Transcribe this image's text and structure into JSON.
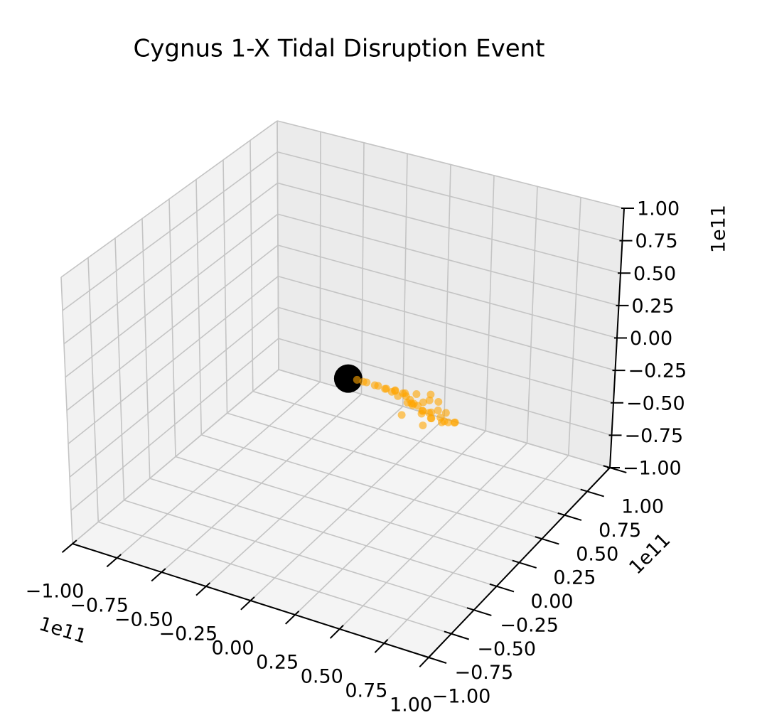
{
  "chart_data": {
    "type": "scatter3d",
    "title": "Cygnus 1-X Tidal Disruption Event",
    "x_offset": "1e11",
    "y_offset": "1e11",
    "z_offset": "1e11",
    "xlim": [
      -1,
      1
    ],
    "ylim": [
      -1,
      1
    ],
    "zlim": [
      -1,
      1
    ],
    "xticks": [
      {
        "value": -1,
        "label": "−1.00"
      },
      {
        "value": -0.75,
        "label": "−0.75"
      },
      {
        "value": -0.5,
        "label": "−0.50"
      },
      {
        "value": -0.25,
        "label": "−0.25"
      },
      {
        "value": 0,
        "label": "0.00"
      },
      0.25,
      {
        "value": 0.5,
        "label": "0.50"
      },
      0.75,
      {
        "value": 1,
        "label": "1.00"
      }
    ],
    "yticks": [
      {
        "value": -1,
        "label": "−1.00"
      },
      {
        "value": -0.75,
        "label": "−0.75"
      },
      {
        "value": -0.5,
        "label": "−0.50"
      },
      {
        "value": -0.25,
        "label": "−0.25"
      },
      {
        "value": 0,
        "label": "0.00"
      },
      0.25,
      {
        "value": 0.5,
        "label": "0.50"
      },
      0.75,
      {
        "value": 1,
        "label": "1.00"
      }
    ],
    "zticks": [
      {
        "value": -1,
        "label": "−1.00"
      },
      {
        "value": -0.75,
        "label": "−0.75"
      },
      {
        "value": -0.5,
        "label": "−0.50"
      },
      {
        "value": -0.25,
        "label": "−0.25"
      },
      {
        "value": 0,
        "label": "0.00"
      },
      0.25,
      {
        "value": 0.5,
        "label": "0.50"
      },
      0.75,
      {
        "value": 1,
        "label": "1.00"
      }
    ],
    "grid": true,
    "series": [
      {
        "color": "#000000",
        "marker_size": 400,
        "alpha": 1,
        "x": [
          0
        ],
        "y": [
          0
        ],
        "z": [
          0
        ]
      },
      {
        "color": "#ffa500",
        "marker_size": 30,
        "alpha": 0.6,
        "x": [
          0.05,
          0.08,
          0.11,
          0.14,
          0.17,
          0.2,
          0.22,
          0.24,
          0.26,
          0.27,
          0.29,
          0.3,
          0.31,
          0.33,
          0.34,
          0.35,
          0.36,
          0.37,
          0.38,
          0.39,
          0.4,
          0.41,
          0.42,
          0.43,
          0.44,
          0.45,
          0.46,
          0.47,
          0.48,
          0.49,
          0.5,
          0.51,
          0.52,
          0.53,
          0.55,
          0.56,
          0.58,
          0.6,
          0.62,
          0.36,
          0.42,
          0.47
        ],
        "y": [
          0,
          0.01,
          -0.01,
          0.02,
          0,
          0.03,
          -0.02,
          0.05,
          0.01,
          -0.04,
          0.06,
          0.02,
          -0.05,
          0.04,
          -0.02,
          0.07,
          0,
          -0.06,
          0.03,
          -0.03,
          0.05,
          -0.08,
          0.01,
          0.06,
          -0.04,
          0.02,
          -0.07,
          0.08,
          -0.01,
          0.04,
          -0.05,
          0.03,
          -0.09,
          0.05,
          -0.03,
          0.02,
          -0.06,
          0.01,
          -0.02,
          -0.1,
          0.09,
          -0.08
        ],
        "z": [
          0.01,
          0,
          0.02,
          -0.01,
          0.01,
          -0.02,
          0.02,
          -0.03,
          0,
          0.03,
          -0.04,
          -0.01,
          0.02,
          -0.06,
          0.01,
          -0.03,
          -0.05,
          0,
          -0.08,
          -0.02,
          -0.06,
          0.01,
          -0.09,
          -0.04,
          -0.07,
          -0.1,
          -0.02,
          -0.05,
          -0.11,
          -0.08,
          -0.03,
          -0.12,
          -0.04,
          -0.09,
          -0.1,
          -0.13,
          -0.06,
          -0.11,
          -0.08,
          -0.07,
          -0.02,
          -0.12
        ]
      }
    ]
  }
}
